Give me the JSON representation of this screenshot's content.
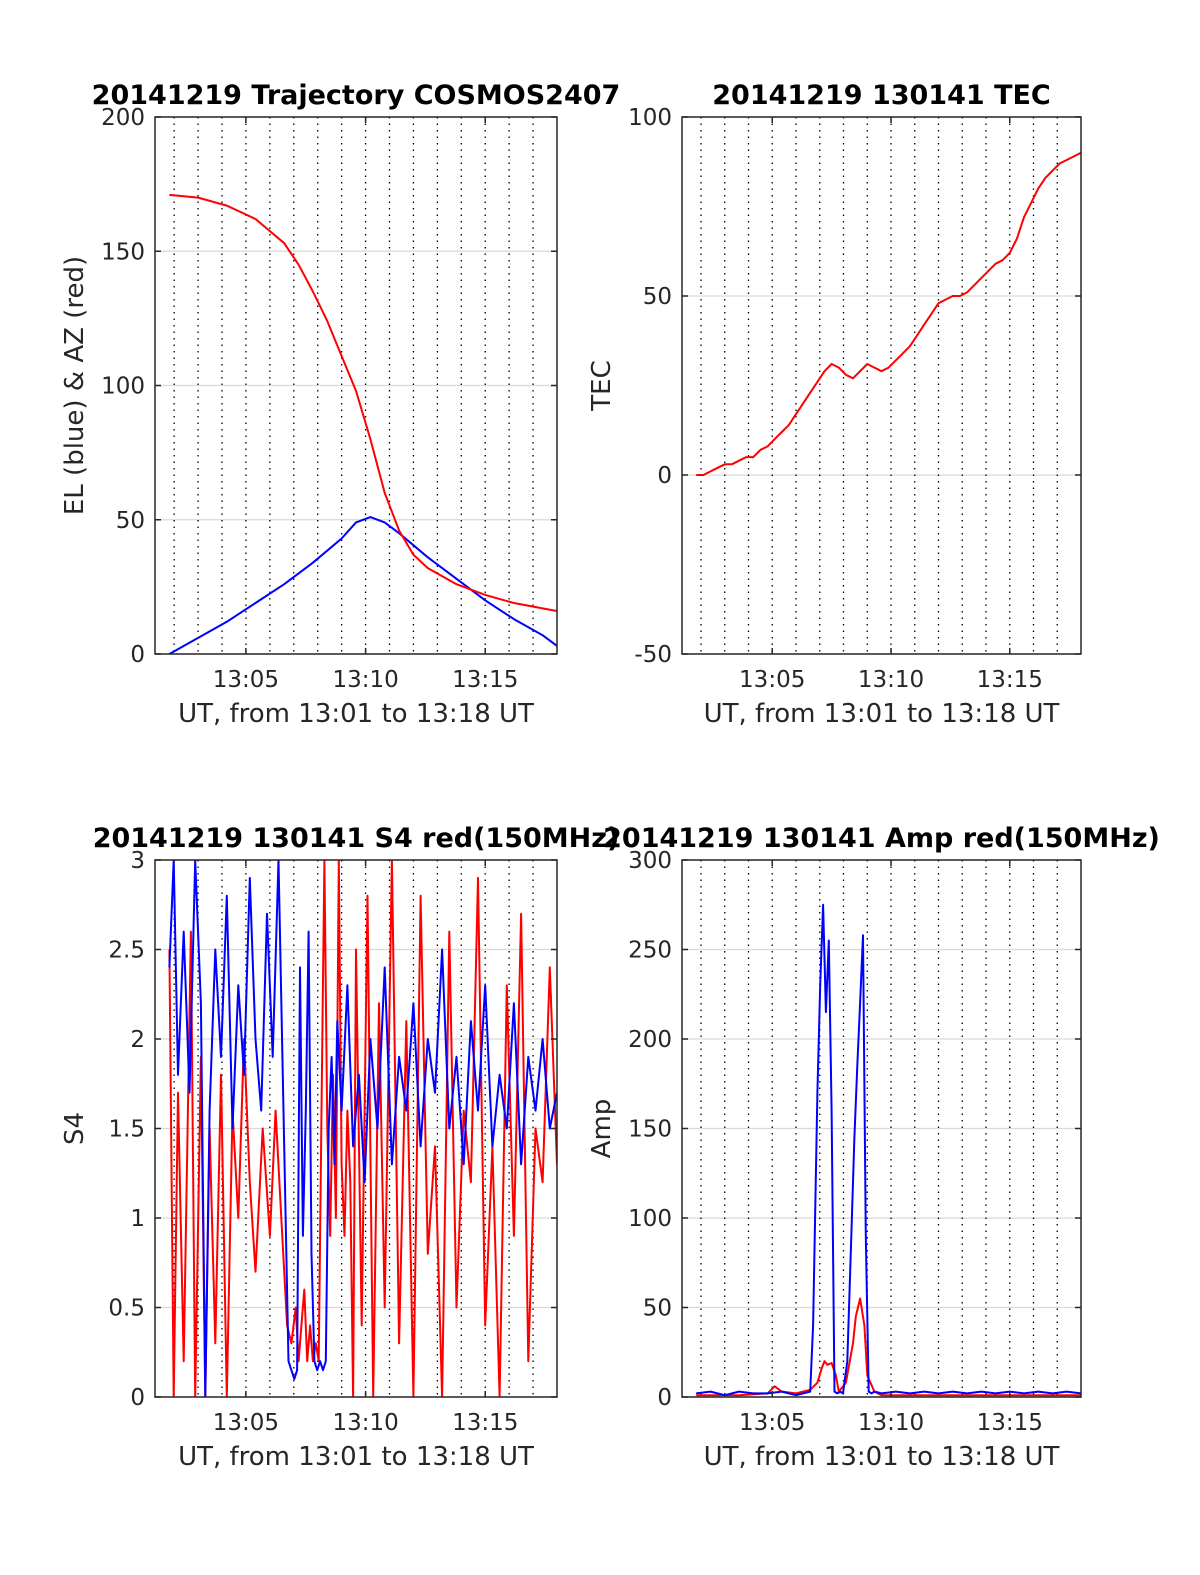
{
  "figure": {
    "background": "#ffffff"
  },
  "colors": {
    "blue": "#0000ff",
    "red": "#ff0000",
    "axis": "#262626",
    "grid": "#d9d9d9"
  },
  "chart_data": [
    {
      "type": "line",
      "title": "20141219 Trajectory COSMOS2407",
      "xlabel": "UT, from 13:01 to 13:18 UT",
      "ylabel": "EL (blue) & AZ (red)",
      "xlim": [
        13.02,
        13.3
      ],
      "ylim": [
        0,
        200
      ],
      "xticks": [
        {
          "value": 13.0833,
          "label": "13:05"
        },
        {
          "value": 13.1667,
          "label": "13:10"
        },
        {
          "value": 13.25,
          "label": "13:15"
        }
      ],
      "yticks": [
        {
          "value": 0,
          "label": "0"
        },
        {
          "value": 50,
          "label": "50"
        },
        {
          "value": 100,
          "label": "100"
        },
        {
          "value": 150,
          "label": "150"
        },
        {
          "value": 200,
          "label": "200"
        }
      ],
      "grid": "horizontal solid, vertical dotted",
      "series": [
        {
          "color": "#0000ff",
          "x": [
            13.03,
            13.05,
            13.07,
            13.09,
            13.11,
            13.13,
            13.15,
            13.16,
            13.17,
            13.18,
            13.19,
            13.21,
            13.23,
            13.25,
            13.27,
            13.29,
            13.3
          ],
          "values": [
            0,
            6,
            12,
            19,
            26,
            34,
            43,
            49,
            51,
            49,
            45,
            36,
            28,
            20,
            13,
            7,
            3
          ]
        },
        {
          "color": "#ff0000",
          "x": [
            13.03,
            13.05,
            13.07,
            13.09,
            13.11,
            13.12,
            13.13,
            13.14,
            13.15,
            13.16,
            13.17,
            13.18,
            13.19,
            13.2,
            13.21,
            13.23,
            13.25,
            13.27,
            13.29,
            13.3
          ],
          "values": [
            171,
            170,
            167,
            162,
            153,
            145,
            135,
            124,
            111,
            98,
            80,
            60,
            46,
            37,
            32,
            26,
            22,
            19,
            17,
            16
          ]
        }
      ]
    },
    {
      "type": "line",
      "title": "20141219 130141 TEC",
      "xlabel": "UT, from 13:01 to 13:18 UT",
      "ylabel": "TEC",
      "xlim": [
        13.02,
        13.3
      ],
      "ylim": [
        -50,
        100
      ],
      "xticks": [
        {
          "value": 13.0833,
          "label": "13:05"
        },
        {
          "value": 13.1667,
          "label": "13:10"
        },
        {
          "value": 13.25,
          "label": "13:15"
        }
      ],
      "yticks": [
        {
          "value": -50,
          "label": "-50"
        },
        {
          "value": 0,
          "label": "0"
        },
        {
          "value": 50,
          "label": "50"
        },
        {
          "value": 100,
          "label": "100"
        }
      ],
      "grid": "horizontal solid, vertical dotted",
      "series": [
        {
          "color": "#ff0000",
          "x": [
            13.03,
            13.035,
            13.04,
            13.045,
            13.05,
            13.055,
            13.06,
            13.065,
            13.07,
            13.075,
            13.08,
            13.085,
            13.09,
            13.095,
            13.1,
            13.105,
            13.11,
            13.115,
            13.12,
            13.125,
            13.13,
            13.135,
            13.14,
            13.145,
            13.15,
            13.155,
            13.16,
            13.165,
            13.17,
            13.175,
            13.18,
            13.185,
            13.19,
            13.195,
            13.2,
            13.205,
            13.21,
            13.215,
            13.22,
            13.225,
            13.23,
            13.235,
            13.24,
            13.245,
            13.25,
            13.255,
            13.26,
            13.265,
            13.27,
            13.275,
            13.28,
            13.285,
            13.29,
            13.295,
            13.3
          ],
          "values": [
            0,
            0,
            1,
            2,
            3,
            3,
            4,
            5,
            5,
            7,
            8,
            10,
            12,
            14,
            17,
            20,
            23,
            26,
            29,
            31,
            30,
            28,
            27,
            29,
            31,
            30,
            29,
            30,
            32,
            34,
            36,
            39,
            42,
            45,
            48,
            49,
            50,
            50,
            51,
            53,
            55,
            57,
            59,
            60,
            62,
            66,
            72,
            76,
            80,
            83,
            85,
            87,
            88,
            89,
            90
          ]
        }
      ]
    },
    {
      "type": "line",
      "title": "20141219 130141 S4 red(150MHz)",
      "xlabel": "UT, from 13:01 to 13:18 UT",
      "ylabel": "S4",
      "xlim": [
        13.02,
        13.3
      ],
      "ylim": [
        0,
        3
      ],
      "xticks": [
        {
          "value": 13.0833,
          "label": "13:05"
        },
        {
          "value": 13.1667,
          "label": "13:10"
        },
        {
          "value": 13.25,
          "label": "13:15"
        }
      ],
      "yticks": [
        {
          "value": 0,
          "label": "0"
        },
        {
          "value": 0.5,
          "label": "0.5"
        },
        {
          "value": 1,
          "label": "1"
        },
        {
          "value": 1.5,
          "label": "1.5"
        },
        {
          "value": 2,
          "label": "2"
        },
        {
          "value": 2.5,
          "label": "2.5"
        },
        {
          "value": 3,
          "label": "3"
        }
      ],
      "grid": "horizontal solid, vertical dotted",
      "series": [
        {
          "color": "#ff0000",
          "x": [
            13.03,
            13.033,
            13.036,
            13.04,
            13.045,
            13.048,
            13.052,
            13.055,
            13.058,
            13.062,
            13.066,
            13.07,
            13.074,
            13.078,
            13.082,
            13.086,
            13.09,
            13.095,
            13.1,
            13.104,
            13.108,
            13.112,
            13.115,
            13.118,
            13.12,
            13.122,
            13.124,
            13.126,
            13.128,
            13.13,
            13.132,
            13.134,
            13.136,
            13.138,
            13.14,
            13.142,
            13.144,
            13.146,
            13.148,
            13.15,
            13.152,
            13.154,
            13.156,
            13.158,
            13.16,
            13.164,
            13.168,
            13.172,
            13.176,
            13.18,
            13.185,
            13.19,
            13.195,
            13.2,
            13.205,
            13.21,
            13.215,
            13.22,
            13.225,
            13.23,
            13.235,
            13.24,
            13.245,
            13.25,
            13.255,
            13.26,
            13.265,
            13.27,
            13.275,
            13.28,
            13.285,
            13.29,
            13.295,
            13.3
          ],
          "values": [
            2.5,
            0,
            1.7,
            0.2,
            2.6,
            0,
            1.9,
            0,
            1.5,
            0.3,
            1.8,
            0,
            1.6,
            1.0,
            2.0,
            1.2,
            0.7,
            1.5,
            0.9,
            1.6,
            1.0,
            0.4,
            0.3,
            0.5,
            0.2,
            0.4,
            0.6,
            0.2,
            0.4,
            0.2,
            0.3,
            0.2,
            1.6,
            3.0,
            1.5,
            0.9,
            1.8,
            1.0,
            3.0,
            1.3,
            0.9,
            1.6,
            1.2,
            0,
            2.5,
            0.4,
            2.8,
            0,
            2.2,
            0.5,
            3.0,
            0.3,
            2.1,
            0,
            2.8,
            0.8,
            1.4,
            0,
            2.6,
            0.5,
            1.6,
            1.2,
            2.9,
            0.4,
            1.4,
            0,
            2.3,
            0.9,
            2.7,
            0.2,
            1.5,
            1.2,
            2.4,
            1.3
          ]
        },
        {
          "color": "#0000ff",
          "x": [
            13.03,
            13.033,
            13.036,
            13.04,
            13.044,
            13.048,
            13.052,
            13.055,
            13.058,
            13.062,
            13.066,
            13.07,
            13.074,
            13.078,
            13.082,
            13.086,
            13.09,
            13.094,
            13.098,
            13.102,
            13.106,
            13.11,
            13.113,
            13.115,
            13.117,
            13.119,
            13.121,
            13.123,
            13.125,
            13.127,
            13.129,
            13.131,
            13.133,
            13.135,
            13.137,
            13.139,
            13.141,
            13.143,
            13.145,
            13.147,
            13.15,
            13.154,
            13.158,
            13.162,
            13.166,
            13.17,
            13.175,
            13.18,
            13.185,
            13.19,
            13.195,
            13.2,
            13.205,
            13.21,
            13.215,
            13.22,
            13.225,
            13.23,
            13.235,
            13.24,
            13.245,
            13.25,
            13.255,
            13.26,
            13.265,
            13.27,
            13.275,
            13.28,
            13.285,
            13.29,
            13.295,
            13.3
          ],
          "values": [
            2.4,
            3.0,
            1.8,
            2.6,
            1.7,
            3.0,
            2.2,
            0,
            1.6,
            2.5,
            1.9,
            2.8,
            1.5,
            2.3,
            1.8,
            2.9,
            2.0,
            1.6,
            2.7,
            1.9,
            3.0,
            1.4,
            0.2,
            0.15,
            0.1,
            0.15,
            2.4,
            0.9,
            1.6,
            2.6,
            0.8,
            0.2,
            0.15,
            0.2,
            0.15,
            0.2,
            1.5,
            1.9,
            1.3,
            2.1,
            1.6,
            2.3,
            1.4,
            1.8,
            1.2,
            2.0,
            1.5,
            2.4,
            1.3,
            1.9,
            1.6,
            2.2,
            1.4,
            2.0,
            1.7,
            2.5,
            1.5,
            1.9,
            1.3,
            2.1,
            1.6,
            2.3,
            1.4,
            1.8,
            1.5,
            2.2,
            1.3,
            1.9,
            1.6,
            2.0,
            1.5,
            1.7
          ]
        }
      ]
    },
    {
      "type": "line",
      "title": "20141219 130141 Amp red(150MHz)",
      "xlabel": "UT, from 13:01 to 13:18 UT",
      "ylabel": "Amp",
      "xlim": [
        13.02,
        13.3
      ],
      "ylim": [
        0,
        300
      ],
      "xticks": [
        {
          "value": 13.0833,
          "label": "13:05"
        },
        {
          "value": 13.1667,
          "label": "13:10"
        },
        {
          "value": 13.25,
          "label": "13:15"
        }
      ],
      "yticks": [
        {
          "value": 0,
          "label": "0"
        },
        {
          "value": 50,
          "label": "50"
        },
        {
          "value": 100,
          "label": "100"
        },
        {
          "value": 150,
          "label": "150"
        },
        {
          "value": 200,
          "label": "200"
        },
        {
          "value": 250,
          "label": "250"
        },
        {
          "value": 300,
          "label": "300"
        }
      ],
      "grid": "horizontal solid, vertical dotted",
      "series": [
        {
          "color": "#ff0000",
          "x": [
            13.03,
            13.06,
            13.08,
            13.085,
            13.09,
            13.1,
            13.11,
            13.115,
            13.118,
            13.12,
            13.122,
            13.125,
            13.128,
            13.13,
            13.135,
            13.14,
            13.142,
            13.145,
            13.148,
            13.15,
            13.155,
            13.16,
            13.17,
            13.2,
            13.25,
            13.3
          ],
          "values": [
            1,
            1,
            2,
            6,
            3,
            2,
            4,
            8,
            16,
            20,
            18,
            19,
            12,
            3,
            8,
            30,
            45,
            55,
            40,
            12,
            3,
            1,
            1,
            1,
            1,
            1
          ]
        },
        {
          "color": "#0000ff",
          "x": [
            13.03,
            13.04,
            13.05,
            13.06,
            13.07,
            13.08,
            13.09,
            13.1,
            13.11,
            13.112,
            13.115,
            13.117,
            13.119,
            13.121,
            13.123,
            13.125,
            13.127,
            13.129,
            13.131,
            13.133,
            13.136,
            13.139,
            13.141,
            13.143,
            13.145,
            13.147,
            13.149,
            13.151,
            13.153,
            13.155,
            13.16,
            13.17,
            13.18,
            13.19,
            13.2,
            13.21,
            13.22,
            13.23,
            13.24,
            13.25,
            13.26,
            13.27,
            13.28,
            13.29,
            13.3
          ],
          "values": [
            2,
            3,
            1,
            3,
            2,
            2,
            3,
            1,
            3,
            40,
            170,
            230,
            275,
            215,
            255,
            160,
            3,
            2,
            3,
            2,
            20,
            95,
            145,
            185,
            220,
            258,
            90,
            3,
            2,
            3,
            2,
            3,
            2,
            3,
            2,
            3,
            2,
            3,
            2,
            3,
            2,
            3,
            2,
            3,
            2
          ]
        }
      ]
    }
  ]
}
